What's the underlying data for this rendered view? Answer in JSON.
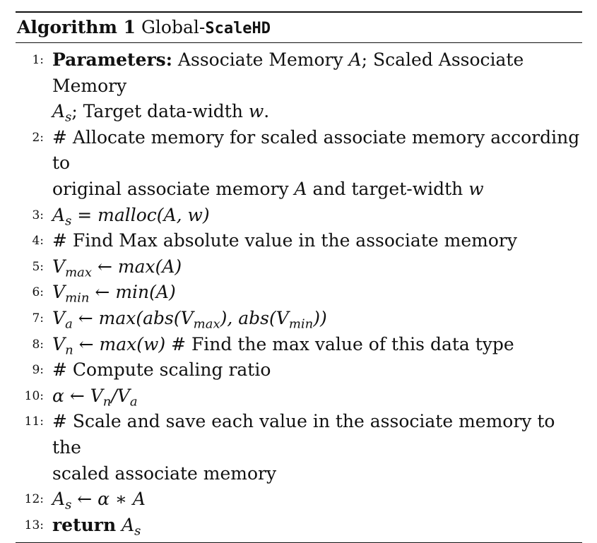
{
  "algorithm": {
    "label": "Algorithm 1",
    "name_prefix": "Global-",
    "name_mono": "ScaleHD"
  },
  "lines": [
    {
      "num": "1:",
      "kw": "Parameters:",
      "text_a": " Associate Memory ",
      "A": "A",
      "text_b": "; Scaled Associate Memory",
      "wrap_A": "A",
      "wrap_sub": "s",
      "text_c": "; Target data-width ",
      "w": "w",
      "text_d": "."
    },
    {
      "num": "2:",
      "text_a": "# Allocate memory for scaled associate memory according to",
      "text_b": "original associate memory ",
      "A": "A",
      "text_c": " and target-width ",
      "w": "w"
    },
    {
      "num": "3:",
      "lhs": "A",
      "lhs_sub": "s",
      "op": " = ",
      "rhs": "malloc(A, w)"
    },
    {
      "num": "4:",
      "text": "# Find Max absolute value in the associate memory"
    },
    {
      "num": "5:",
      "lhs": "V",
      "lhs_sub": "max",
      "op": " ← ",
      "rhs": "max(A)"
    },
    {
      "num": "6:",
      "lhs": "V",
      "lhs_sub": "min",
      "op": " ← ",
      "rhs": "min(A)"
    },
    {
      "num": "7:",
      "lhs": "V",
      "lhs_sub": "a",
      "op": " ← ",
      "rhs_a": "max(abs(V",
      "rhs_sub1": "max",
      "rhs_b": "), abs(V",
      "rhs_sub2": "min",
      "rhs_c": "))"
    },
    {
      "num": "8:",
      "lhs": "V",
      "lhs_sub": "n",
      "op": " ← ",
      "rhs": "max(w)",
      "comment": " # Find the max value of this data type"
    },
    {
      "num": "9:",
      "text": "# Compute scaling ratio"
    },
    {
      "num": "10:",
      "lhs": "α",
      "op": " ← ",
      "rhs_a": "V",
      "rhs_sub1": "n",
      "rhs_b": "/V",
      "rhs_sub2": "a"
    },
    {
      "num": "11:",
      "text_a": "# Scale and save each value in the associate memory to the",
      "text_b": "scaled associate memory"
    },
    {
      "num": "12:",
      "lhs": "A",
      "lhs_sub": "s",
      "op": " ← ",
      "rhs": "α ∗ A"
    },
    {
      "num": "13:",
      "kw": "return",
      "sp": " ",
      "rhs": "A",
      "rhs_sub": "s"
    }
  ]
}
